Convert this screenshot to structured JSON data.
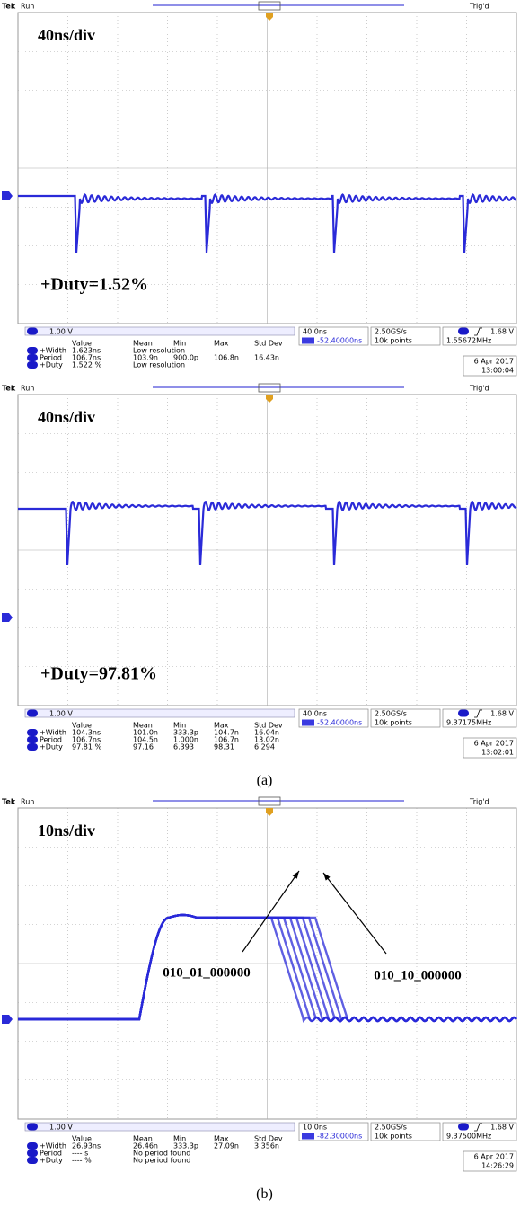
{
  "panels": [
    {
      "header": {
        "brand": "Tek",
        "status": "Run",
        "trigger_status": "Trig'd"
      },
      "timescale": "40ns/div",
      "annotation": "+Duty=1.52%",
      "channel_scale": "1.00 V",
      "measurement_columns": [
        "Value",
        "Mean",
        "Min",
        "Max",
        "Std Dev"
      ],
      "measurements": [
        [
          "+Width",
          "1.623ns",
          "Low resolution"
        ],
        [
          "Period",
          "106.7ns",
          "103.9n",
          "900.0p",
          "106.8n",
          "16.43n"
        ],
        [
          "+Duty",
          "1.522 %",
          "Low resolution"
        ]
      ],
      "horizontal": {
        "scale": "40.0ns",
        "position": "-52.40000ns"
      },
      "acquisition": {
        "sample_rate": "2.50GS/s",
        "record_length": "10k points"
      },
      "trigger": {
        "level": "1.68 V",
        "frequency": "1.55672MHz"
      },
      "date": "6 Apr 2017",
      "time": "13:00:04"
    },
    {
      "header": {
        "brand": "Tek",
        "status": "Run",
        "trigger_status": "Trig'd"
      },
      "timescale": "40ns/div",
      "annotation": "+Duty=97.81%",
      "channel_scale": "1.00 V",
      "measurement_columns": [
        "Value",
        "Mean",
        "Min",
        "Max",
        "Std Dev"
      ],
      "measurements": [
        [
          "+Width",
          "104.3ns",
          "101.0n",
          "333.3p",
          "104.7n",
          "16.04n"
        ],
        [
          "Period",
          "106.7ns",
          "104.5n",
          "1.000n",
          "106.7n",
          "13.02n"
        ],
        [
          "+Duty",
          "97.81 %",
          "97.16",
          "6.393",
          "98.31",
          "6.294"
        ]
      ],
      "horizontal": {
        "scale": "40.0ns",
        "position": "-52.40000ns"
      },
      "acquisition": {
        "sample_rate": "2.50GS/s",
        "record_length": "10k points"
      },
      "trigger": {
        "level": "1.68 V",
        "frequency": "9.37175MHz"
      },
      "date": "6 Apr 2017",
      "time": "13:02:01"
    },
    {
      "header": {
        "brand": "Tek",
        "status": "Run",
        "trigger_status": "Trig'd"
      },
      "timescale": "10ns/div",
      "labels": [
        "010_01_000000",
        "010_10_000000"
      ],
      "channel_scale": "1.00 V",
      "measurement_columns": [
        "Value",
        "Mean",
        "Min",
        "Max",
        "Std Dev"
      ],
      "measurements": [
        [
          "+Width",
          "26.93ns",
          "26.46n",
          "333.3p",
          "27.09n",
          "3.356n"
        ],
        [
          "Period",
          "---- s",
          "No period found"
        ],
        [
          "+Duty",
          "---- %",
          "No period found"
        ]
      ],
      "horizontal": {
        "scale": "10.0ns",
        "position": "-82.30000ns"
      },
      "acquisition": {
        "sample_rate": "2.50GS/s",
        "record_length": "10k points"
      },
      "trigger": {
        "level": "1.68 V",
        "frequency": "9.37500MHz"
      },
      "date": "6 Apr 2017",
      "time": "14:26:29"
    }
  ],
  "captions": [
    "(a)",
    "(b)"
  ]
}
